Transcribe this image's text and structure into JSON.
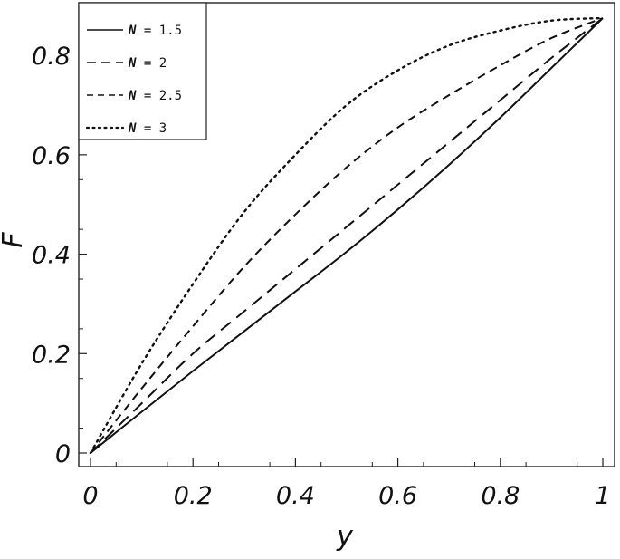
{
  "chart_data": {
    "type": "line",
    "title": "",
    "xlabel": "y",
    "ylabel": "F",
    "xlim": [
      0,
      1
    ],
    "ylim": [
      0,
      0.88
    ],
    "xticks": [
      0,
      0.2,
      0.4,
      0.6,
      0.8,
      1
    ],
    "xtick_labels": [
      "0",
      "0.2",
      "0.4",
      "0.6",
      "0.8",
      "1"
    ],
    "yticks": [
      0,
      0.2,
      0.4,
      0.6,
      0.8
    ],
    "ytick_labels": [
      "0",
      "0.2",
      "0.4",
      "0.6",
      "0.8"
    ],
    "grid": false,
    "legend_position": "top-left",
    "series": [
      {
        "name": "N = 1.5",
        "var": "N",
        "rest": " = 1.5",
        "style": "solid",
        "x": [
          0,
          0.1,
          0.2,
          0.3,
          0.4,
          0.5,
          0.6,
          0.7,
          0.8,
          0.9,
          1.0
        ],
        "y": [
          0,
          0.083,
          0.165,
          0.245,
          0.325,
          0.405,
          0.49,
          0.58,
          0.675,
          0.775,
          0.875
        ]
      },
      {
        "name": "N = 2",
        "var": "N",
        "rest": " = 2",
        "style": "long-dash",
        "x": [
          0,
          0.1,
          0.2,
          0.3,
          0.4,
          0.5,
          0.6,
          0.7,
          0.8,
          0.9,
          1.0
        ],
        "y": [
          0,
          0.1,
          0.2,
          0.285,
          0.37,
          0.455,
          0.54,
          0.625,
          0.71,
          0.795,
          0.875
        ]
      },
      {
        "name": "N = 2.5",
        "var": "N",
        "rest": " = 2.5",
        "style": "dash",
        "x": [
          0,
          0.1,
          0.2,
          0.3,
          0.4,
          0.5,
          0.6,
          0.7,
          0.8,
          0.9,
          1.0
        ],
        "y": [
          0,
          0.13,
          0.255,
          0.375,
          0.48,
          0.575,
          0.655,
          0.72,
          0.78,
          0.835,
          0.875
        ]
      },
      {
        "name": "N = 3",
        "var": "N",
        "rest": " = 3",
        "style": "dot",
        "x": [
          0,
          0.1,
          0.2,
          0.3,
          0.4,
          0.5,
          0.6,
          0.7,
          0.8,
          0.9,
          1.0
        ],
        "y": [
          0,
          0.18,
          0.34,
          0.485,
          0.6,
          0.7,
          0.77,
          0.82,
          0.85,
          0.87,
          0.875
        ]
      }
    ]
  }
}
